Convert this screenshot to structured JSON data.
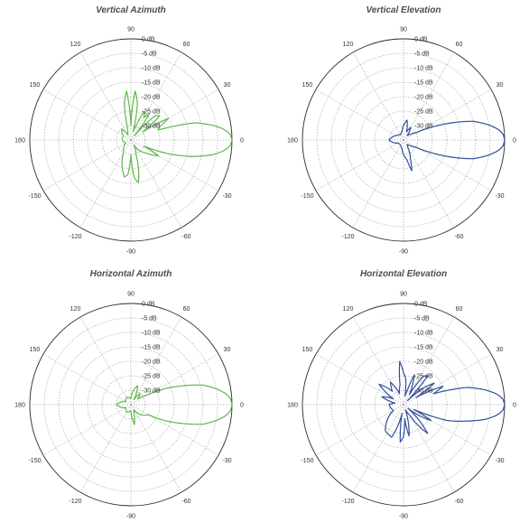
{
  "chart_data": [
    {
      "type": "polar",
      "title": "Vertical Azimuth",
      "color": "#5cb84a",
      "angular_ticks": [
        "90",
        "60",
        "30",
        "0",
        "-30",
        "-60",
        "-90",
        "-120",
        "-150",
        "180",
        "150",
        "120"
      ],
      "radial_ticks": [
        "0 dB",
        "-5 dB",
        "-10 dB",
        "-15 dB",
        "-20 dB",
        "-25 dB",
        "-30 dB"
      ],
      "rlim": [
        -35,
        0
      ],
      "grid": true,
      "series": [
        {
          "angles_deg": [
            -180,
            -150,
            -120,
            -100,
            -95,
            -90,
            -85,
            -80,
            -70,
            -60,
            -50,
            -40,
            -30,
            -25,
            -20,
            -15,
            -10,
            -7,
            -5,
            -3,
            0,
            3,
            5,
            7,
            10,
            15,
            18,
            20,
            25,
            30,
            35,
            40,
            45,
            50,
            55,
            60,
            65,
            70,
            75,
            80,
            85,
            90,
            95,
            100,
            105,
            110,
            120,
            130,
            150,
            180
          ],
          "gain_db": [
            -32,
            -33,
            -30,
            -22,
            -23,
            -30,
            -22,
            -20,
            -30,
            -33,
            -30,
            -28,
            -24,
            -30,
            -21,
            -13,
            -6,
            -3,
            -1.5,
            -0.5,
            0,
            -0.5,
            -1.5,
            -3,
            -6,
            -12,
            -20,
            -25,
            -24,
            -20,
            -30,
            -22,
            -23,
            -33,
            -24,
            -26,
            -24,
            -30,
            -32,
            -22,
            -18,
            -30,
            -18,
            -22,
            -30,
            -32,
            -33,
            -30,
            -32,
            -32
          ]
        }
      ]
    },
    {
      "type": "polar",
      "title": "Vertical Elevation",
      "color": "#2e4f9c",
      "angular_ticks": [
        "90",
        "60",
        "30",
        "0",
        "-30",
        "-60",
        "-90",
        "-120",
        "-150",
        "180",
        "150",
        "120"
      ],
      "radial_ticks": [
        "0 dB",
        "-5 dB",
        "-10 dB",
        "-15 dB",
        "-20 dB",
        "-25 dB",
        "-30 dB"
      ],
      "rlim": [
        -35,
        0
      ],
      "grid": true,
      "series": [
        {
          "angles_deg": [
            -180,
            -150,
            -120,
            -100,
            -90,
            -80,
            -75,
            -70,
            -60,
            -50,
            -40,
            -30,
            -25,
            -20,
            -15,
            -10,
            -7,
            -5,
            -3,
            0,
            3,
            5,
            7,
            10,
            15,
            20,
            25,
            30,
            40,
            50,
            60,
            70,
            80,
            90,
            100,
            120,
            150,
            180
          ],
          "gain_db": [
            -30,
            -33,
            -33,
            -32,
            -30,
            -28,
            -24,
            -28,
            -32,
            -33,
            -32,
            -30,
            -25,
            -18,
            -10,
            -5,
            -2.5,
            -1.2,
            -0.4,
            0,
            -0.4,
            -1.2,
            -2.5,
            -5,
            -10,
            -18,
            -25,
            -30,
            -32,
            -33,
            -30,
            -32,
            -28,
            -30,
            -32,
            -33,
            -32,
            -30
          ]
        }
      ]
    },
    {
      "type": "polar",
      "title": "Horizontal Azimuth",
      "color": "#5cb84a",
      "angular_ticks": [
        "90",
        "60",
        "30",
        "0",
        "-30",
        "-60",
        "-90",
        "-120",
        "-150",
        "180",
        "150",
        "120"
      ],
      "radial_ticks": [
        "0 dB",
        "-5 dB",
        "-10 dB",
        "-15 dB",
        "-20 dB",
        "-25 dB",
        "-30 dB"
      ],
      "rlim": [
        -35,
        0
      ],
      "grid": true,
      "series": [
        {
          "angles_deg": [
            -180,
            -150,
            -120,
            -90,
            -80,
            -70,
            -60,
            -45,
            -30,
            -25,
            -20,
            -15,
            -10,
            -7,
            -5,
            -3,
            0,
            3,
            5,
            7,
            10,
            15,
            20,
            25,
            30,
            40,
            50,
            60,
            70,
            80,
            90,
            120,
            150,
            180
          ],
          "gain_db": [
            -30,
            -33,
            -32,
            -33,
            -28,
            -32,
            -33,
            -30,
            -28,
            -22,
            -16,
            -9,
            -4.5,
            -2.2,
            -1.1,
            -0.4,
            0,
            -0.4,
            -1.1,
            -2.2,
            -4.5,
            -9,
            -16,
            -22,
            -28,
            -32,
            -30,
            -33,
            -28,
            -30,
            -33,
            -32,
            -33,
            -30
          ]
        }
      ]
    },
    {
      "type": "polar",
      "title": "Horizontal Elevation",
      "color": "#2e4f9c",
      "angular_ticks": [
        "90",
        "60",
        "30",
        "0",
        "-30",
        "-60",
        "-90",
        "-120",
        "-150",
        "180",
        "150",
        "120"
      ],
      "radial_ticks": [
        "0 dB",
        "-5 dB",
        "-10 dB",
        "-15 dB",
        "-20 dB",
        "-25 dB",
        "-30 dB"
      ],
      "rlim": [
        -35,
        0
      ],
      "grid": true,
      "series": [
        {
          "angles_deg": [
            -180,
            -150,
            -125,
            -110,
            -100,
            -95,
            -90,
            -85,
            -80,
            -70,
            -60,
            -50,
            -40,
            -30,
            -25,
            -20,
            -15,
            -10,
            -7,
            -5,
            -3,
            0,
            3,
            5,
            7,
            10,
            15,
            18,
            20,
            25,
            30,
            35,
            40,
            45,
            50,
            55,
            60,
            65,
            70,
            75,
            80,
            85,
            90,
            95,
            100,
            110,
            120,
            130,
            140,
            150,
            160,
            170,
            180
          ],
          "gain_db": [
            -30,
            -31,
            -24,
            -23,
            -32,
            -22,
            -24,
            -30,
            -24,
            -33,
            -31,
            -22,
            -33,
            -24,
            -31,
            -19,
            -13,
            -6,
            -3,
            -1.5,
            -0.5,
            0,
            -0.5,
            -1.5,
            -3,
            -6,
            -12,
            -19,
            -24,
            -20,
            -30,
            -22,
            -26,
            -33,
            -22,
            -23,
            -31,
            -28,
            -24,
            -30,
            -32,
            -26,
            -24,
            -20,
            -28,
            -31,
            -26,
            -29,
            -24,
            -31,
            -27,
            -32,
            -30
          ]
        }
      ]
    }
  ]
}
